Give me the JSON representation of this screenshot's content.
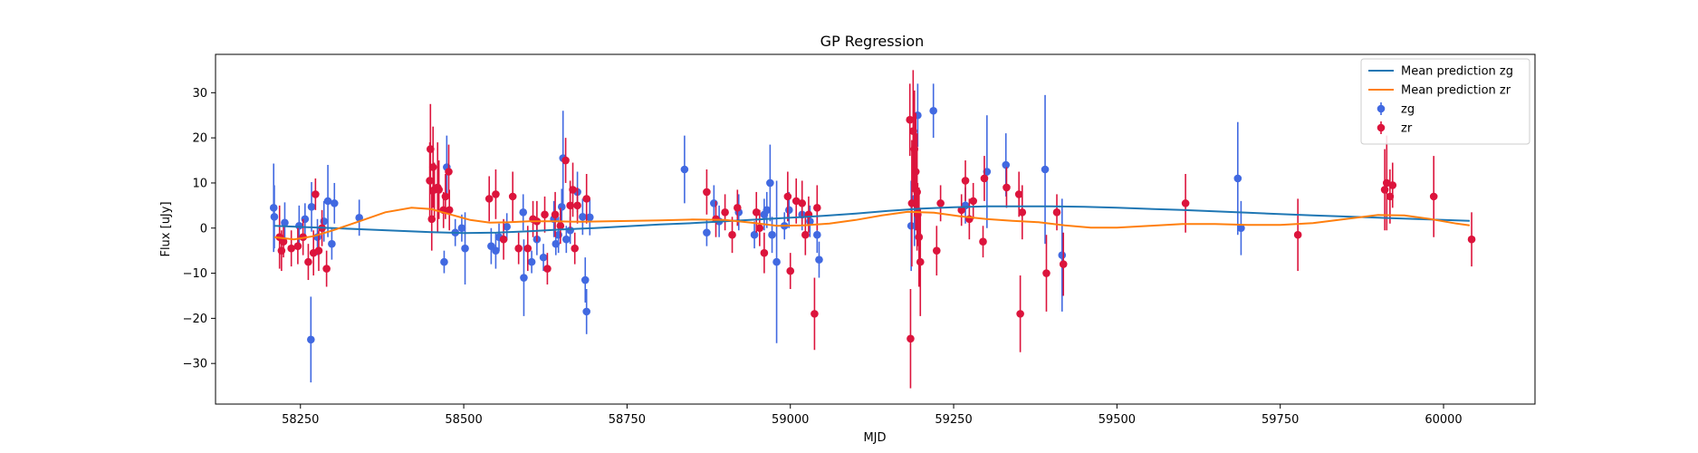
{
  "chart_data": {
    "type": "scatter",
    "title": "GP Regression",
    "xlabel": "MJD",
    "ylabel": "Flux [uJy]",
    "xlim": [
      58120,
      60140
    ],
    "ylim": [
      -39,
      38.5
    ],
    "xticks": [
      58250,
      58500,
      58750,
      59000,
      59250,
      59500,
      59750,
      60000
    ],
    "yticks": [
      -30,
      -20,
      -10,
      0,
      10,
      20,
      30
    ],
    "grid": false,
    "legend_position": "top-right",
    "legend": [
      {
        "label": "Mean prediction zg",
        "kind": "line",
        "color": "#1f77b4"
      },
      {
        "label": "Mean prediction zr",
        "kind": "line",
        "color": "#ff7f0e"
      },
      {
        "label": "zg",
        "kind": "errorbar",
        "color": "#4169e1"
      },
      {
        "label": "zr",
        "kind": "errorbar",
        "color": "#dc143c"
      }
    ],
    "series": [
      {
        "name": "Mean prediction zg",
        "kind": "line",
        "color": "#1f77b4",
        "x": [
          58210,
          58260,
          58300,
          58350,
          58400,
          58450,
          58500,
          58550,
          58600,
          58650,
          58700,
          58750,
          58800,
          58850,
          58900,
          58950,
          59000,
          59050,
          59100,
          59150,
          59200,
          59250,
          59300,
          59350,
          59400,
          59450,
          59500,
          59600,
          59700,
          59800,
          59900,
          60000,
          60040
        ],
        "y": [
          0.5,
          0.2,
          0.0,
          -0.3,
          -0.6,
          -0.9,
          -1.1,
          -1.0,
          -0.7,
          -0.3,
          0.0,
          0.4,
          0.8,
          1.1,
          1.5,
          1.9,
          2.3,
          2.7,
          3.2,
          3.8,
          4.3,
          4.6,
          4.8,
          4.8,
          4.8,
          4.7,
          4.5,
          4.0,
          3.4,
          2.8,
          2.3,
          1.8,
          1.6
        ]
      },
      {
        "name": "Mean prediction zr",
        "kind": "line",
        "color": "#ff7f0e",
        "x": [
          58210,
          58240,
          58270,
          58300,
          58340,
          58380,
          58420,
          58450,
          58480,
          58510,
          58540,
          58570,
          58600,
          58640,
          58680,
          58720,
          58760,
          58800,
          58850,
          58900,
          58940,
          58980,
          59020,
          59060,
          59100,
          59140,
          59180,
          59220,
          59260,
          59300,
          59340,
          59380,
          59420,
          59460,
          59500,
          59550,
          59600,
          59650,
          59700,
          59750,
          59800,
          59850,
          59900,
          59940,
          59980,
          60020,
          60040
        ],
        "y": [
          -2.0,
          -2.5,
          -1.8,
          -0.5,
          1.5,
          3.5,
          4.5,
          4.2,
          3.0,
          1.8,
          1.2,
          1.3,
          1.5,
          1.5,
          1.4,
          1.5,
          1.6,
          1.7,
          1.9,
          1.8,
          1.2,
          0.5,
          0.6,
          1.0,
          1.8,
          2.8,
          3.6,
          3.4,
          2.6,
          2.0,
          1.6,
          1.3,
          0.6,
          0.1,
          0.1,
          0.5,
          0.9,
          0.9,
          0.7,
          0.7,
          1.1,
          2.0,
          2.9,
          2.8,
          2.0,
          1.0,
          0.6
        ]
      },
      {
        "name": "zg",
        "kind": "errorbar",
        "color": "#4169e1",
        "points": [
          [
            58209,
            4.5,
            9.8
          ],
          [
            58210,
            2.5,
            7.0
          ],
          [
            58226,
            1.2,
            4.5
          ],
          [
            58248,
            0.5,
            4.5
          ],
          [
            58257,
            2.0,
            3.5
          ],
          [
            58266,
            -24.7,
            9.5
          ],
          [
            58267,
            4.7,
            5.5
          ],
          [
            58276,
            -2.0,
            4.0
          ],
          [
            58286,
            1.5,
            4.5
          ],
          [
            58292,
            6.0,
            8.0
          ],
          [
            58298,
            -3.5,
            3.5
          ],
          [
            58302,
            5.5,
            4.5
          ],
          [
            58340,
            2.3,
            4.0
          ],
          [
            58470,
            -7.5,
            2.5
          ],
          [
            58474,
            13.5,
            7.0
          ],
          [
            58487,
            -1.0,
            3.0
          ],
          [
            58497,
            0.0,
            3.0
          ],
          [
            58502,
            -4.5,
            8.0
          ],
          [
            58542,
            -4.0,
            4.0
          ],
          [
            58549,
            -5.0,
            4.0
          ],
          [
            58554,
            -2.0,
            3.0
          ],
          [
            58566,
            0.3,
            3.0
          ],
          [
            58591,
            3.5,
            4.0
          ],
          [
            58592,
            -11.0,
            8.5
          ],
          [
            58604,
            -7.5,
            2.5
          ],
          [
            58612,
            -2.5,
            3.5
          ],
          [
            58622,
            -6.5,
            3.0
          ],
          [
            58638,
            2.0,
            4.0
          ],
          [
            58641,
            -3.5,
            2.5
          ],
          [
            58645,
            -1.5,
            4.0
          ],
          [
            58650,
            4.7,
            4.0
          ],
          [
            58652,
            15.5,
            10.5
          ],
          [
            58657,
            -2.5,
            3.0
          ],
          [
            58663,
            -0.5,
            3.0
          ],
          [
            58674,
            8.0,
            4.5
          ],
          [
            58682,
            2.5,
            4.0
          ],
          [
            58686,
            -11.5,
            5.0
          ],
          [
            58688,
            -18.5,
            5.0
          ],
          [
            58693,
            2.4,
            4.0
          ],
          [
            58838,
            13.0,
            7.5
          ],
          [
            58872,
            -1.0,
            3.0
          ],
          [
            58883,
            5.5,
            4.0
          ],
          [
            58891,
            1.5,
            3.5
          ],
          [
            58921,
            3.5,
            4.0
          ],
          [
            58945,
            -1.5,
            3.0
          ],
          [
            58960,
            3.0,
            3.5
          ],
          [
            58964,
            4.0,
            4.0
          ],
          [
            58969,
            10.0,
            8.5
          ],
          [
            58972,
            -1.5,
            4.0
          ],
          [
            58979,
            -7.5,
            18.0
          ],
          [
            58991,
            0.5,
            3.0
          ],
          [
            58998,
            4.0,
            4.0
          ],
          [
            59018,
            3.0,
            3.5
          ],
          [
            59030,
            1.5,
            3.5
          ],
          [
            59041,
            -1.5,
            4.0
          ],
          [
            59044,
            -7.0,
            4.0
          ],
          [
            59185,
            0.5,
            10.0
          ],
          [
            59190,
            6.5,
            10.5
          ],
          [
            59195,
            25.0,
            7.0
          ],
          [
            59219,
            26.0,
            6.0
          ],
          [
            59268,
            5.0,
            4.0
          ],
          [
            59301,
            12.5,
            12.5
          ],
          [
            59330,
            14.0,
            7.0
          ],
          [
            59390,
            13.0,
            16.5
          ],
          [
            59416,
            -6.0,
            12.5
          ],
          [
            59685,
            11.0,
            12.5
          ],
          [
            59690,
            0.0,
            6.0
          ]
        ]
      },
      {
        "name": "zr",
        "kind": "errorbar",
        "color": "#dc143c",
        "points": [
          [
            58218,
            -2.0,
            7.0
          ],
          [
            58221,
            -5.0,
            4.5
          ],
          [
            58224,
            -3.0,
            3.5
          ],
          [
            58236,
            -4.5,
            4.0
          ],
          [
            58246,
            -4.0,
            4.0
          ],
          [
            58254,
            -2.0,
            4.0
          ],
          [
            58262,
            -7.5,
            4.0
          ],
          [
            58270,
            -5.5,
            5.0
          ],
          [
            58273,
            7.5,
            3.5
          ],
          [
            58278,
            -5.0,
            4.5
          ],
          [
            58283,
            0.0,
            4.0
          ],
          [
            58290,
            -9.0,
            4.0
          ],
          [
            58448,
            10.5,
            8.5
          ],
          [
            58449,
            17.5,
            10.0
          ],
          [
            58451,
            2.0,
            7.0
          ],
          [
            58453,
            13.5,
            9.0
          ],
          [
            58455,
            8.5,
            6.0
          ],
          [
            58460,
            9.0,
            10.0
          ],
          [
            58462,
            8.5,
            6.5
          ],
          [
            58469,
            4.0,
            4.0
          ],
          [
            58472,
            7.0,
            5.0
          ],
          [
            58477,
            12.5,
            6.0
          ],
          [
            58478,
            4.0,
            4.5
          ],
          [
            58539,
            6.5,
            5.0
          ],
          [
            58549,
            7.5,
            5.5
          ],
          [
            58561,
            -2.5,
            4.5
          ],
          [
            58575,
            7.0,
            5.5
          ],
          [
            58584,
            -4.5,
            3.5
          ],
          [
            58598,
            -4.5,
            5.0
          ],
          [
            58606,
            2.0,
            4.0
          ],
          [
            58612,
            1.5,
            4.5
          ],
          [
            58624,
            3.0,
            4.0
          ],
          [
            58628,
            -9.0,
            3.5
          ],
          [
            58640,
            3.0,
            5.0
          ],
          [
            58648,
            0.5,
            4.0
          ],
          [
            58656,
            15.0,
            5.0
          ],
          [
            58663,
            5.0,
            5.5
          ],
          [
            58667,
            8.5,
            6.0
          ],
          [
            58670,
            -4.5,
            3.5
          ],
          [
            58674,
            5.0,
            4.0
          ],
          [
            58688,
            6.5,
            5.5
          ],
          [
            58872,
            8.0,
            5.0
          ],
          [
            58886,
            2.0,
            4.0
          ],
          [
            58900,
            3.5,
            4.0
          ],
          [
            58911,
            -1.5,
            4.0
          ],
          [
            58919,
            4.5,
            4.0
          ],
          [
            58948,
            3.5,
            4.5
          ],
          [
            58953,
            0.0,
            4.0
          ],
          [
            58960,
            -5.5,
            4.5
          ],
          [
            58996,
            7.0,
            5.5
          ],
          [
            59000,
            -9.5,
            4.0
          ],
          [
            59009,
            6.0,
            5.0
          ],
          [
            59018,
            5.5,
            5.0
          ],
          [
            59023,
            -1.5,
            4.5
          ],
          [
            59028,
            3.0,
            4.0
          ],
          [
            59037,
            -19.0,
            8.0
          ],
          [
            59041,
            4.5,
            5.0
          ],
          [
            59183,
            24.0,
            8.0
          ],
          [
            59184,
            -24.5,
            11.0
          ],
          [
            59186,
            5.5,
            14.0
          ],
          [
            59188,
            21.5,
            13.5
          ],
          [
            59190,
            17.5,
            13.0
          ],
          [
            59192,
            12.5,
            13.0
          ],
          [
            59194,
            8.0,
            13.0
          ],
          [
            59195,
            3.0,
            7.0
          ],
          [
            59197,
            -2.0,
            11.0
          ],
          [
            59199,
            -7.5,
            12.0
          ],
          [
            59224,
            -5.0,
            5.5
          ],
          [
            59230,
            5.5,
            4.0
          ],
          [
            59262,
            4.0,
            3.5
          ],
          [
            59268,
            10.5,
            4.5
          ],
          [
            59274,
            2.0,
            4.5
          ],
          [
            59280,
            6.0,
            4.0
          ],
          [
            59295,
            -3.0,
            3.5
          ],
          [
            59297,
            11.0,
            5.0
          ],
          [
            59331,
            9.0,
            4.5
          ],
          [
            59350,
            7.5,
            5.0
          ],
          [
            59352,
            -19.0,
            8.5
          ],
          [
            59355,
            3.5,
            6.0
          ],
          [
            59392,
            -10.0,
            8.5
          ],
          [
            59408,
            3.5,
            4.0
          ],
          [
            59418,
            -8.0,
            7.0
          ],
          [
            59605,
            5.5,
            6.5
          ],
          [
            59777,
            -1.5,
            8.0
          ],
          [
            59910,
            8.5,
            9.0
          ],
          [
            59913,
            10.0,
            10.5
          ],
          [
            59918,
            7.0,
            6.0
          ],
          [
            59922,
            9.5,
            5.0
          ],
          [
            59985,
            7.0,
            9.0
          ],
          [
            60043,
            -2.5,
            6.0
          ]
        ]
      }
    ]
  }
}
